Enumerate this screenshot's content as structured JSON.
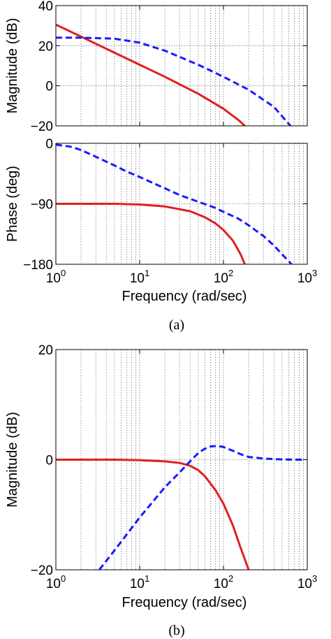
{
  "chart_data": [
    {
      "panel": "a-magnitude",
      "type": "line",
      "xscale": "log",
      "xlim": [
        1,
        1000
      ],
      "ylim": [
        -20,
        40
      ],
      "ylabel": "Magnitude (dB)",
      "xlabel": "",
      "yticks": [
        "40",
        "20",
        "0",
        "−20"
      ],
      "xticks": [],
      "grid": true,
      "series": [
        {
          "color": "#e02020",
          "style": "solid",
          "x": [
            1,
            2,
            5,
            10,
            20,
            50,
            100,
            150,
            180
          ],
          "y": [
            30.5,
            24.5,
            16.5,
            10.5,
            4.5,
            -4,
            -11.5,
            -17,
            -20
          ]
        },
        {
          "color": "#1a1aff",
          "style": "dashed",
          "x": [
            1,
            2,
            5,
            10,
            20,
            50,
            100,
            200,
            400,
            630
          ],
          "y": [
            24,
            24,
            23.5,
            21.5,
            17.5,
            10.5,
            4.5,
            -2,
            -10.5,
            -20
          ]
        }
      ]
    },
    {
      "panel": "a-phase",
      "type": "line",
      "xscale": "log",
      "xlim": [
        1,
        1000
      ],
      "ylim": [
        -180,
        0
      ],
      "ylabel": "Phase (deg)",
      "xlabel": "Frequency (rad/sec)",
      "yticks": [
        "0",
        "−90",
        "−180"
      ],
      "xticks": [
        {
          "base": "10",
          "exp": "0"
        },
        {
          "base": "10",
          "exp": "1"
        },
        {
          "base": "10",
          "exp": "2"
        },
        {
          "base": "10",
          "exp": "3"
        }
      ],
      "grid": true,
      "series": [
        {
          "color": "#e02020",
          "style": "solid",
          "x": [
            1,
            5,
            10,
            20,
            40,
            60,
            80,
            100,
            130,
            160,
            180
          ],
          "y": [
            -90,
            -90,
            -91,
            -94,
            -101,
            -110,
            -119,
            -129,
            -145,
            -165,
            -180
          ]
        },
        {
          "color": "#1a1aff",
          "style": "dashed",
          "x": [
            1,
            1.5,
            2,
            3,
            5,
            7,
            10,
            15,
            20,
            30,
            50,
            80,
            100,
            150,
            200,
            300,
            400,
            500,
            650
          ],
          "y": [
            -2,
            -5,
            -10,
            -20,
            -33,
            -42,
            -50,
            -60,
            -67,
            -77,
            -87,
            -96,
            -102,
            -112,
            -122,
            -138,
            -152,
            -165,
            -180
          ]
        }
      ]
    },
    {
      "panel": "b-magnitude",
      "type": "line",
      "xscale": "log",
      "xlim": [
        1,
        1000
      ],
      "ylim": [
        -20,
        20
      ],
      "ylabel": "Magnitude (dB)",
      "xlabel": "Frequency (rad/sec)",
      "yticks": [
        "20",
        "0",
        "−20"
      ],
      "xticks": [
        {
          "base": "10",
          "exp": "0"
        },
        {
          "base": "10",
          "exp": "1"
        },
        {
          "base": "10",
          "exp": "2"
        },
        {
          "base": "10",
          "exp": "3"
        }
      ],
      "grid": true,
      "series": [
        {
          "color": "#e02020",
          "style": "solid",
          "x": [
            1,
            5,
            10,
            20,
            30,
            40,
            50,
            60,
            80,
            100,
            130,
            160,
            200
          ],
          "y": [
            0,
            0,
            -0.1,
            -0.3,
            -0.6,
            -1.1,
            -1.9,
            -3,
            -5.5,
            -8,
            -12,
            -16,
            -20
          ]
        },
        {
          "color": "#1a1aff",
          "style": "dashed",
          "x": [
            3.3,
            5,
            10,
            20,
            30,
            40,
            50,
            60,
            70,
            85,
            100,
            130,
            160,
            200,
            300,
            500,
            700,
            900
          ],
          "y": [
            -20,
            -16.5,
            -10.5,
            -5,
            -2.3,
            -0.3,
            1.2,
            2,
            2.4,
            2.5,
            2.3,
            1.6,
            1,
            0.5,
            0.2,
            0.05,
            0,
            0
          ]
        }
      ]
    }
  ],
  "captions": {
    "a": "(a)",
    "b": "(b)"
  }
}
